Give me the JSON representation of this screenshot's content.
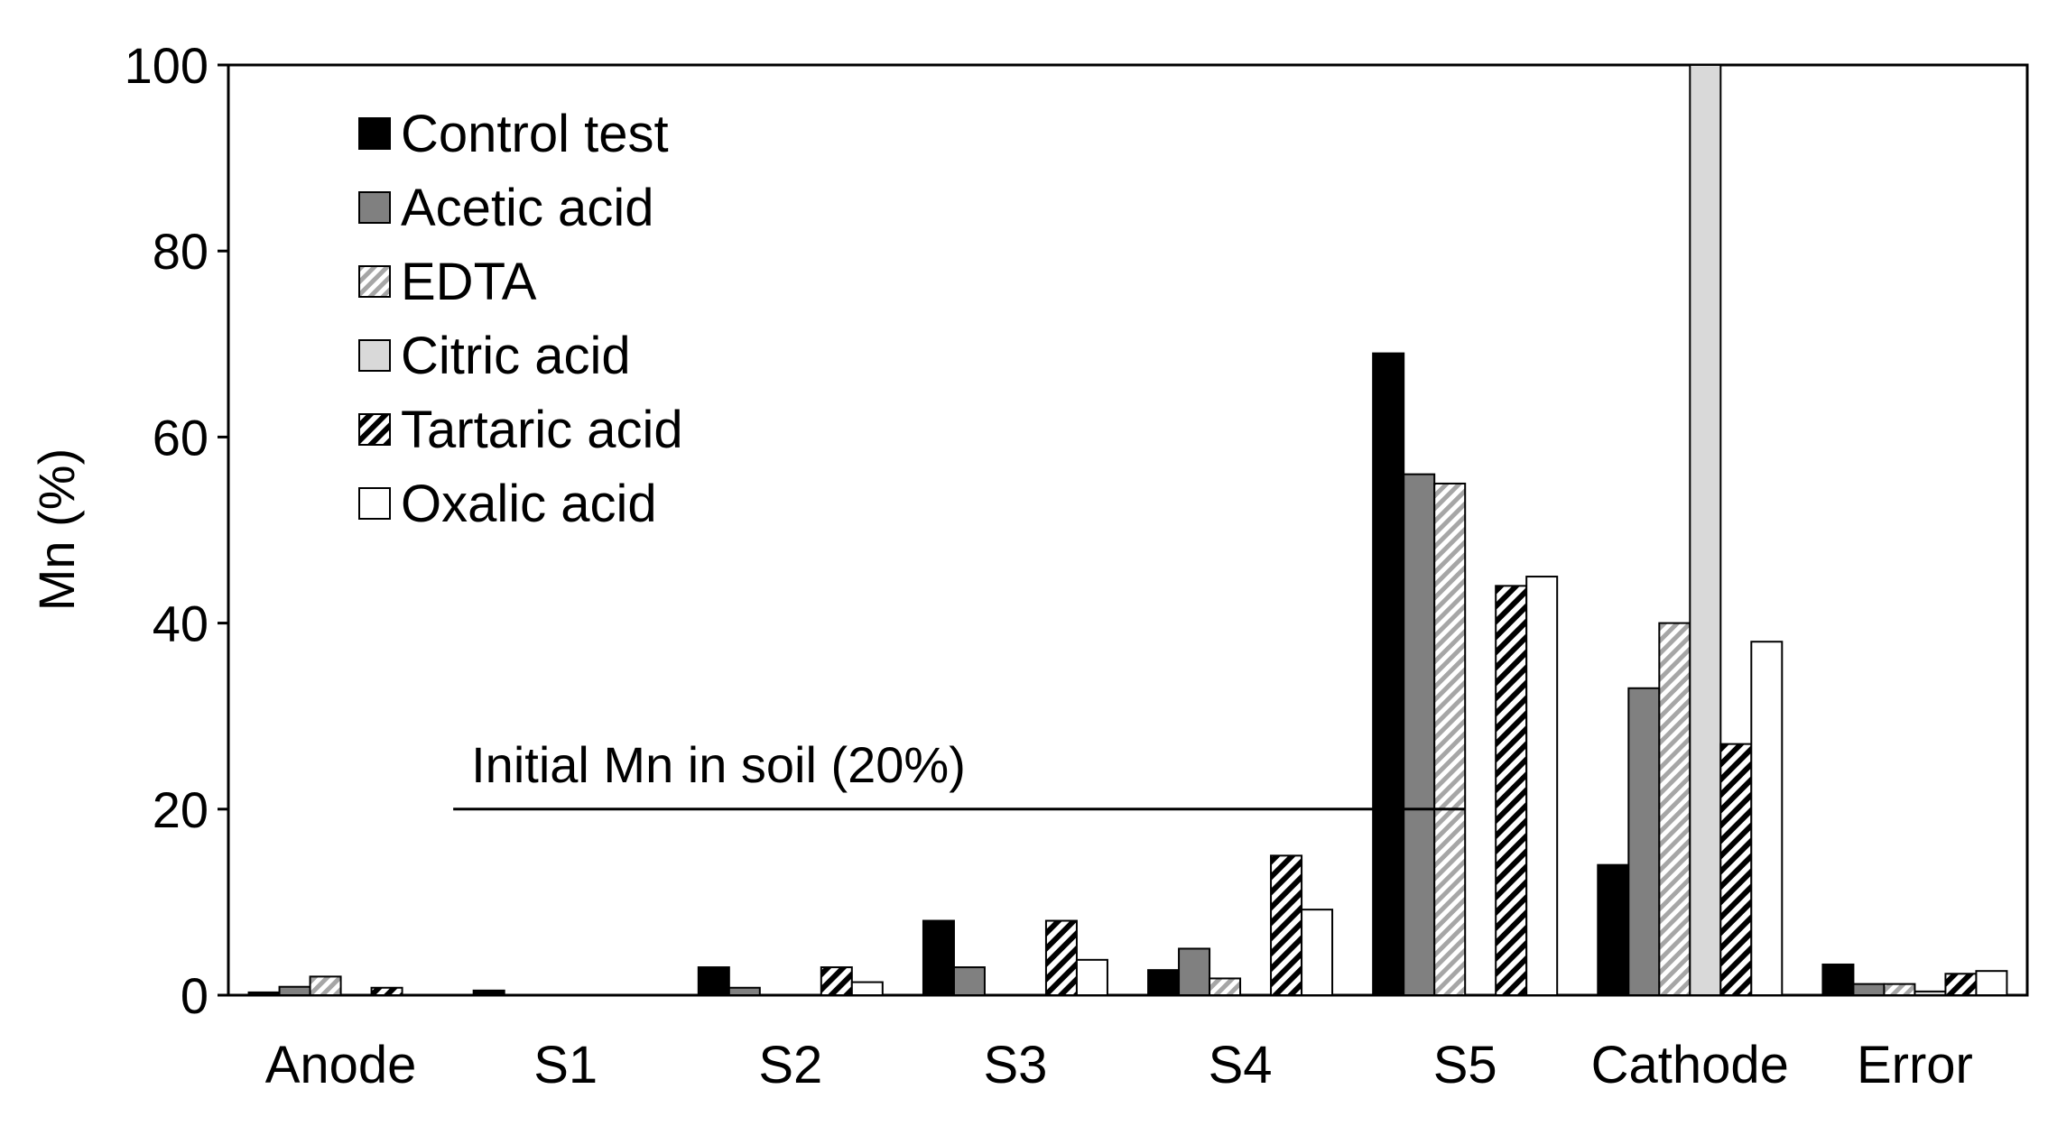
{
  "chart_data": {
    "type": "bar",
    "title": "",
    "xlabel": "",
    "ylabel": "Mn (%)",
    "ylim": [
      0,
      100
    ],
    "yticks": [
      "0",
      "20",
      "40",
      "60",
      "80",
      "100"
    ],
    "grid": false,
    "legend_position": "top-left",
    "categories": [
      "Anode",
      "S1",
      "S2",
      "S3",
      "S4",
      "S5",
      "Cathode",
      "Error"
    ],
    "series": [
      {
        "name": "Control test",
        "fill": "solid",
        "color": "#000000",
        "values": [
          0.3,
          0.5,
          3,
          8,
          2.7,
          69,
          14,
          3.3
        ]
      },
      {
        "name": "Acetic acid",
        "fill": "solid",
        "color": "#808080",
        "values": [
          0.9,
          0,
          0.8,
          3,
          5,
          56,
          33,
          1.2
        ]
      },
      {
        "name": "EDTA",
        "fill": "hatch-light",
        "color": "#a6a6a6",
        "values": [
          2,
          0,
          0,
          0,
          1.8,
          55,
          40,
          1.2
        ]
      },
      {
        "name": "Citric acid",
        "fill": "solid",
        "color": "#d9d9d9",
        "values": [
          0,
          0,
          0,
          0,
          0,
          0,
          100,
          0.4
        ]
      },
      {
        "name": "Tartaric acid",
        "fill": "hatch-dark",
        "color": "#000000",
        "values": [
          0.8,
          0,
          3,
          8,
          15,
          44,
          27,
          2.3
        ]
      },
      {
        "name": "Oxalic acid",
        "fill": "solid",
        "color": "#ffffff",
        "values": [
          0,
          0,
          1.4,
          3.8,
          9.2,
          45,
          38,
          2.6
        ]
      }
    ],
    "annotation": {
      "text": "Initial Mn in soil (20%)",
      "value": 20,
      "from_category": "S1",
      "to_category": "S5"
    }
  }
}
